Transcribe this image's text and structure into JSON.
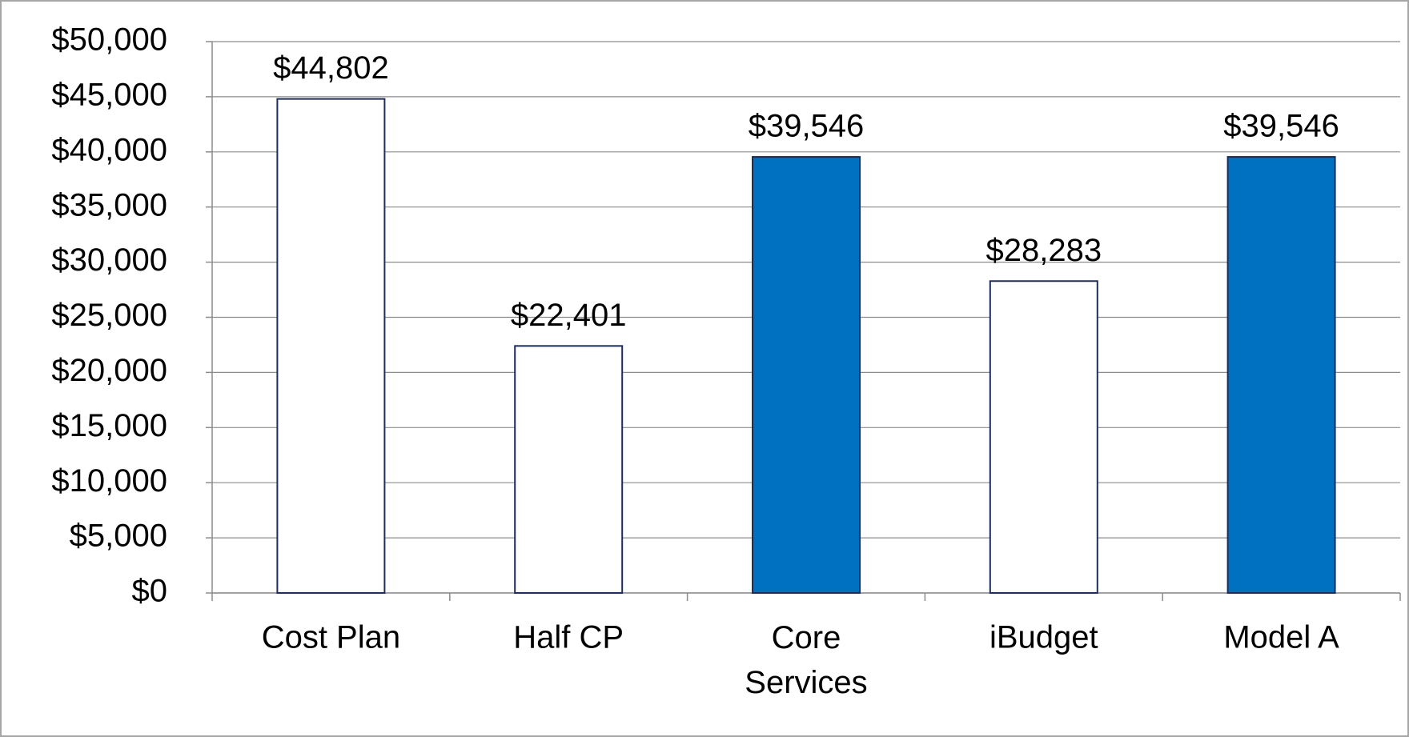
{
  "chart_data": {
    "type": "bar",
    "categories": [
      "Cost Plan",
      "Half CP",
      "Core Services",
      "iBudget",
      "Model A"
    ],
    "values": [
      44802,
      22401,
      39546,
      28283,
      39546
    ],
    "value_labels": [
      "$44,802",
      "$22,401",
      "$39,546",
      "$28,283",
      "$39,546"
    ],
    "colors": [
      "#ffffff",
      "#ffffff",
      "#0070c0",
      "#ffffff",
      "#0070c0"
    ],
    "edge_color": "#1f2d5c",
    "ylim": [
      0,
      50000
    ],
    "yticks": [
      {
        "value": 0,
        "label": "$0"
      },
      {
        "value": 5000,
        "label": "$5,000"
      },
      {
        "value": 10000,
        "label": "$10,000"
      },
      {
        "value": 15000,
        "label": "$15,000"
      },
      {
        "value": 20000,
        "label": "$20,000"
      },
      {
        "value": 25000,
        "label": "$25,000"
      },
      {
        "value": 30000,
        "label": "$30,000"
      },
      {
        "value": 35000,
        "label": "$35,000"
      },
      {
        "value": 40000,
        "label": "$40,000"
      },
      {
        "value": 45000,
        "label": "$45,000"
      },
      {
        "value": 50000,
        "label": "$50,000"
      }
    ],
    "grid": true
  }
}
